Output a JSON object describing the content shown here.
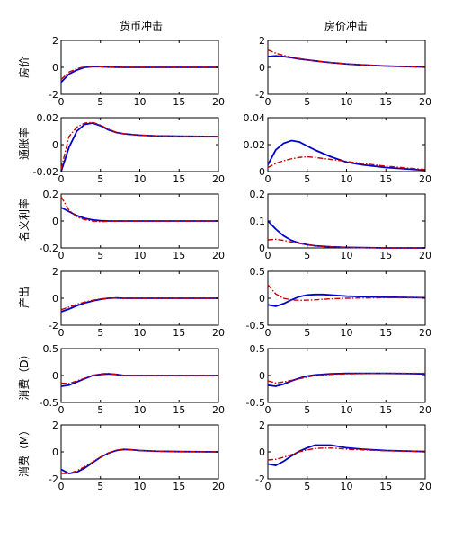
{
  "chart_data": {
    "type": "line",
    "column_titles": [
      "货币冲击",
      "房价冲击"
    ],
    "row_labels": [
      "房价",
      "通胀率",
      "名义利率",
      "产出",
      "消费（D）",
      "消费（M）"
    ],
    "x_ticks": [
      0,
      5,
      10,
      15,
      20
    ],
    "xlim": [
      0,
      20
    ],
    "series_styles": {
      "solid": "#0000cc",
      "dashdot": "#cc0000"
    },
    "panels": [
      {
        "row": 0,
        "col": 0,
        "ylim": [
          -2,
          2
        ],
        "yticks": [
          -2,
          0,
          2
        ],
        "yticklabels": [
          "-2",
          "0",
          "2"
        ],
        "series": [
          {
            "style": "solid",
            "x": [
              0,
              1,
              2,
              3,
              4,
              5,
              6,
              8,
              10,
              15,
              20
            ],
            "y": [
              -1.1,
              -0.5,
              -0.2,
              0.0,
              0.05,
              0.05,
              0.02,
              0.0,
              0.0,
              0.0,
              0.0
            ]
          },
          {
            "style": "dashdot",
            "x": [
              0,
              1,
              2,
              3,
              4,
              5,
              6,
              8,
              10,
              15,
              20
            ],
            "y": [
              -0.9,
              -0.35,
              -0.1,
              0.05,
              0.08,
              0.05,
              0.02,
              0.0,
              0.0,
              0.0,
              0.0
            ]
          }
        ]
      },
      {
        "row": 0,
        "col": 1,
        "ylim": [
          -2,
          2
        ],
        "yticks": [
          -2,
          0,
          2
        ],
        "yticklabels": [
          "-2",
          "0",
          "2"
        ],
        "series": [
          {
            "style": "solid",
            "x": [
              0,
              1,
              2,
              3,
              4,
              5,
              6,
              7,
              8,
              10,
              12,
              15,
              18,
              20
            ],
            "y": [
              0.8,
              0.85,
              0.8,
              0.72,
              0.62,
              0.55,
              0.48,
              0.41,
              0.35,
              0.25,
              0.18,
              0.1,
              0.05,
              0.03
            ]
          },
          {
            "style": "dashdot",
            "x": [
              0,
              1,
              2,
              3,
              4,
              5,
              6,
              7,
              8,
              10,
              12,
              15,
              18,
              20
            ],
            "y": [
              1.3,
              1.05,
              0.88,
              0.75,
              0.65,
              0.55,
              0.47,
              0.41,
              0.35,
              0.25,
              0.18,
              0.1,
              0.05,
              0.03
            ]
          }
        ]
      },
      {
        "row": 1,
        "col": 0,
        "ylim": [
          -0.02,
          0.02
        ],
        "yticks": [
          -0.02,
          0,
          0.02
        ],
        "yticklabels": [
          "-0.02",
          "0",
          "0.02"
        ],
        "series": [
          {
            "style": "solid",
            "x": [
              0,
              1,
              2,
              3,
              4,
              5,
              6,
              7,
              8,
              10,
              12,
              15,
              20
            ],
            "y": [
              -0.02,
              -0.002,
              0.01,
              0.015,
              0.016,
              0.014,
              0.011,
              0.009,
              0.008,
              0.007,
              0.0065,
              0.0062,
              0.006
            ]
          },
          {
            "style": "dashdot",
            "x": [
              0,
              1,
              2,
              3,
              4,
              5,
              6,
              7,
              8,
              10,
              12,
              15,
              20
            ],
            "y": [
              -0.018,
              0.006,
              0.013,
              0.016,
              0.0165,
              0.0145,
              0.0115,
              0.0092,
              0.008,
              0.007,
              0.0065,
              0.0062,
              0.006
            ]
          }
        ]
      },
      {
        "row": 1,
        "col": 1,
        "ylim": [
          0,
          0.04
        ],
        "yticks": [
          0,
          0.02,
          0.04
        ],
        "yticklabels": [
          "0",
          "0.02",
          "0.04"
        ],
        "series": [
          {
            "style": "solid",
            "x": [
              0,
              1,
              2,
              3,
              4,
              5,
              6,
              8,
              10,
              12,
              15,
              20
            ],
            "y": [
              0.005,
              0.016,
              0.021,
              0.023,
              0.022,
              0.019,
              0.016,
              0.011,
              0.007,
              0.005,
              0.003,
              0.001
            ]
          },
          {
            "style": "dashdot",
            "x": [
              0,
              1,
              2,
              3,
              4,
              5,
              6,
              8,
              10,
              12,
              15,
              20
            ],
            "y": [
              0.003,
              0.006,
              0.008,
              0.0095,
              0.0105,
              0.011,
              0.0105,
              0.009,
              0.0075,
              0.006,
              0.004,
              0.0015
            ]
          }
        ]
      },
      {
        "row": 2,
        "col": 0,
        "ylim": [
          -0.2,
          0.2
        ],
        "yticks": [
          -0.2,
          0,
          0.2
        ],
        "yticklabels": [
          "-0.2",
          "0",
          "0.2"
        ],
        "series": [
          {
            "style": "solid",
            "x": [
              0,
              1,
              2,
              3,
              4,
              5,
              6,
              8,
              10,
              15,
              20
            ],
            "y": [
              0.1,
              0.07,
              0.04,
              0.02,
              0.008,
              0.002,
              0.0,
              0.0,
              0.0,
              0.0,
              0.0
            ]
          },
          {
            "style": "dashdot",
            "x": [
              0,
              1,
              2,
              3,
              4,
              5,
              6,
              8,
              10,
              15,
              20
            ],
            "y": [
              0.18,
              0.08,
              0.03,
              0.01,
              0.0,
              -0.005,
              -0.002,
              0.0,
              0.0,
              0.0,
              0.0
            ]
          }
        ]
      },
      {
        "row": 2,
        "col": 1,
        "ylim": [
          0,
          0.2
        ],
        "yticks": [
          0,
          0.1,
          0.2
        ],
        "yticklabels": [
          "0",
          "0.1",
          "0.2"
        ],
        "series": [
          {
            "style": "solid",
            "x": [
              0,
              1,
              2,
              3,
              4,
              5,
              6,
              8,
              10,
              15,
              20
            ],
            "y": [
              0.1,
              0.07,
              0.045,
              0.028,
              0.018,
              0.012,
              0.008,
              0.004,
              0.002,
              0.0,
              0.0
            ]
          },
          {
            "style": "dashdot",
            "x": [
              0,
              1,
              2,
              3,
              4,
              5,
              6,
              8,
              10,
              15,
              20
            ],
            "y": [
              0.03,
              0.032,
              0.028,
              0.022,
              0.017,
              0.012,
              0.008,
              0.004,
              0.002,
              0.0,
              0.0
            ]
          }
        ]
      },
      {
        "row": 3,
        "col": 0,
        "ylim": [
          -2,
          2
        ],
        "yticks": [
          -2,
          0,
          2
        ],
        "yticklabels": [
          "-2",
          "0",
          "2"
        ],
        "series": [
          {
            "style": "solid",
            "x": [
              0,
              1,
              2,
              3,
              4,
              5,
              6,
              7,
              8,
              10,
              15,
              20
            ],
            "y": [
              -1.0,
              -0.8,
              -0.55,
              -0.35,
              -0.2,
              -0.08,
              0.0,
              0.02,
              0.0,
              0.0,
              0.0,
              0.0
            ]
          },
          {
            "style": "dashdot",
            "x": [
              0,
              1,
              2,
              3,
              4,
              5,
              6,
              7,
              8,
              10,
              15,
              20
            ],
            "y": [
              -0.85,
              -0.65,
              -0.45,
              -0.28,
              -0.15,
              -0.05,
              0.0,
              0.02,
              0.0,
              0.0,
              0.0,
              0.0
            ]
          }
        ]
      },
      {
        "row": 3,
        "col": 1,
        "ylim": [
          -0.5,
          0.5
        ],
        "yticks": [
          -0.5,
          0,
          0.5
        ],
        "yticklabels": [
          "-0.5",
          "0",
          "0.5"
        ],
        "series": [
          {
            "style": "solid",
            "x": [
              0,
              1,
              2,
              3,
              4,
              5,
              6,
              7,
              8,
              10,
              12,
              15,
              20
            ],
            "y": [
              -0.12,
              -0.15,
              -0.1,
              -0.03,
              0.03,
              0.06,
              0.07,
              0.07,
              0.06,
              0.04,
              0.03,
              0.02,
              0.01
            ]
          },
          {
            "style": "dashdot",
            "x": [
              0,
              1,
              2,
              3,
              4,
              5,
              6,
              7,
              8,
              10,
              12,
              15,
              20
            ],
            "y": [
              0.25,
              0.08,
              0.0,
              -0.03,
              -0.04,
              -0.035,
              -0.03,
              -0.02,
              -0.01,
              0.0,
              0.005,
              0.01,
              0.01
            ]
          }
        ]
      },
      {
        "row": 4,
        "col": 0,
        "ylim": [
          -0.5,
          0.5
        ],
        "yticks": [
          -0.5,
          0,
          0.5
        ],
        "yticklabels": [
          "-0.5",
          "0",
          "0.5"
        ],
        "series": [
          {
            "style": "solid",
            "x": [
              0,
              1,
              2,
              3,
              4,
              5,
              6,
              7,
              8,
              10,
              15,
              20
            ],
            "y": [
              -0.2,
              -0.18,
              -0.12,
              -0.06,
              0.0,
              0.02,
              0.03,
              0.02,
              0.0,
              0.0,
              0.0,
              0.0
            ]
          },
          {
            "style": "dashdot",
            "x": [
              0,
              1,
              2,
              3,
              4,
              5,
              6,
              7,
              8,
              10,
              15,
              20
            ],
            "y": [
              -0.14,
              -0.15,
              -0.1,
              -0.05,
              0.0,
              0.03,
              0.04,
              0.02,
              0.0,
              0.0,
              0.0,
              0.0
            ]
          }
        ]
      },
      {
        "row": 4,
        "col": 1,
        "ylim": [
          -0.5,
          0.5
        ],
        "yticks": [
          -0.5,
          0,
          0.5
        ],
        "yticklabels": [
          "-0.5",
          "0",
          "0.5"
        ],
        "series": [
          {
            "style": "solid",
            "x": [
              0,
              1,
              2,
              3,
              4,
              5,
              6,
              8,
              10,
              12,
              15,
              18,
              20
            ],
            "y": [
              -0.18,
              -0.2,
              -0.16,
              -0.1,
              -0.05,
              -0.01,
              0.01,
              0.03,
              0.04,
              0.04,
              0.04,
              0.035,
              0.03
            ]
          },
          {
            "style": "dashdot",
            "x": [
              0,
              1,
              2,
              3,
              4,
              5,
              6,
              8,
              10,
              12,
              15,
              18,
              20
            ],
            "y": [
              -0.1,
              -0.14,
              -0.12,
              -0.09,
              -0.06,
              -0.03,
              0.0,
              0.02,
              0.03,
              0.035,
              0.04,
              0.04,
              0.04
            ]
          }
        ]
      },
      {
        "row": 5,
        "col": 0,
        "ylim": [
          -2,
          2
        ],
        "yticks": [
          -2,
          0,
          2
        ],
        "yticklabels": [
          "-2",
          "0",
          "2"
        ],
        "series": [
          {
            "style": "solid",
            "x": [
              0,
              1,
              2,
              3,
              4,
              5,
              6,
              7,
              8,
              9,
              10,
              12,
              15,
              20
            ],
            "y": [
              -1.3,
              -1.6,
              -1.5,
              -1.2,
              -0.8,
              -0.4,
              -0.1,
              0.1,
              0.18,
              0.15,
              0.1,
              0.05,
              0.02,
              0.0
            ]
          },
          {
            "style": "dashdot",
            "x": [
              0,
              1,
              2,
              3,
              4,
              5,
              6,
              7,
              8,
              9,
              10,
              12,
              15,
              20
            ],
            "y": [
              -1.6,
              -1.6,
              -1.4,
              -1.1,
              -0.75,
              -0.38,
              -0.08,
              0.12,
              0.2,
              0.16,
              0.1,
              0.05,
              0.02,
              0.0
            ]
          }
        ]
      },
      {
        "row": 5,
        "col": 1,
        "ylim": [
          -2,
          2
        ],
        "yticks": [
          -2,
          0,
          2
        ],
        "yticklabels": [
          "-2",
          "0",
          "2"
        ],
        "series": [
          {
            "style": "solid",
            "x": [
              0,
              1,
              2,
              3,
              4,
              5,
              6,
              7,
              8,
              9,
              10,
              12,
              15,
              20
            ],
            "y": [
              -0.9,
              -1.0,
              -0.7,
              -0.3,
              0.05,
              0.3,
              0.5,
              0.5,
              0.5,
              0.4,
              0.3,
              0.2,
              0.1,
              0.02
            ]
          },
          {
            "style": "dashdot",
            "x": [
              0,
              1,
              2,
              3,
              4,
              5,
              6,
              7,
              8,
              9,
              10,
              12,
              15,
              20
            ],
            "y": [
              -0.6,
              -0.55,
              -0.4,
              -0.2,
              0.0,
              0.15,
              0.25,
              0.28,
              0.28,
              0.25,
              0.2,
              0.15,
              0.08,
              0.03
            ]
          }
        ]
      }
    ]
  }
}
